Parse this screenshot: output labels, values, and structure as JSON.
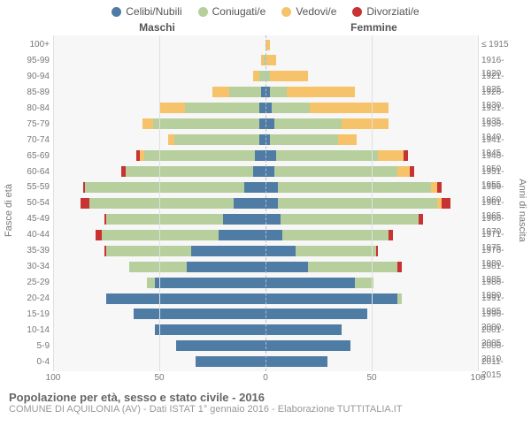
{
  "legend": {
    "items": [
      {
        "label": "Celibi/Nubili",
        "color": "#4f7ca5"
      },
      {
        "label": "Coniugati/e",
        "color": "#b6cf9d"
      },
      {
        "label": "Vedovi/e",
        "color": "#f6c36a"
      },
      {
        "label": "Divorziati/e",
        "color": "#c83232"
      }
    ]
  },
  "headers": {
    "male": "Maschi",
    "female": "Femmine"
  },
  "axis": {
    "left_title": "Fasce di età",
    "right_title": "Anni di nascita",
    "x_ticks": [
      -100,
      -50,
      0,
      50,
      100
    ],
    "half_max": 100
  },
  "colors": {
    "grid": "#e0e0e0",
    "center_dash": "#b8b8d0",
    "plot_bg": "#f7f7f7",
    "axis_text": "#777"
  },
  "footer": {
    "title": "Popolazione per età, sesso e stato civile - 2016",
    "subtitle": "COMUNE DI AQUILONIA (AV) - Dati ISTAT 1° gennaio 2016 - Elaborazione TUTTITALIA.IT"
  },
  "age_groups": [
    "0-4",
    "5-9",
    "10-14",
    "15-19",
    "20-24",
    "25-29",
    "30-34",
    "35-39",
    "40-44",
    "45-49",
    "50-54",
    "55-59",
    "60-64",
    "65-69",
    "70-74",
    "75-79",
    "80-84",
    "85-89",
    "90-94",
    "95-99",
    "100+"
  ],
  "birth_years": [
    "2011-2015",
    "2006-2010",
    "2001-2005",
    "1996-2000",
    "1991-1995",
    "1986-1990",
    "1981-1985",
    "1976-1980",
    "1971-1975",
    "1966-1970",
    "1961-1965",
    "1956-1960",
    "1951-1955",
    "1946-1950",
    "1941-1945",
    "1936-1940",
    "1931-1935",
    "1926-1930",
    "1921-1925",
    "1916-1920",
    "≤ 1915"
  ],
  "male": [
    {
      "cel": 33,
      "con": 0,
      "ved": 0,
      "div": 0
    },
    {
      "cel": 42,
      "con": 0,
      "ved": 0,
      "div": 0
    },
    {
      "cel": 52,
      "con": 0,
      "ved": 0,
      "div": 0
    },
    {
      "cel": 62,
      "con": 0,
      "ved": 0,
      "div": 0
    },
    {
      "cel": 75,
      "con": 0,
      "ved": 0,
      "div": 0
    },
    {
      "cel": 52,
      "con": 4,
      "ved": 0,
      "div": 0
    },
    {
      "cel": 37,
      "con": 27,
      "ved": 0,
      "div": 0
    },
    {
      "cel": 35,
      "con": 40,
      "ved": 0,
      "div": 1
    },
    {
      "cel": 22,
      "con": 55,
      "ved": 0,
      "div": 3
    },
    {
      "cel": 20,
      "con": 55,
      "ved": 0,
      "div": 1
    },
    {
      "cel": 15,
      "con": 68,
      "ved": 0,
      "div": 4
    },
    {
      "cel": 10,
      "con": 75,
      "ved": 0,
      "div": 1
    },
    {
      "cel": 6,
      "con": 60,
      "ved": 0,
      "div": 2
    },
    {
      "cel": 5,
      "con": 52,
      "ved": 2,
      "div": 2
    },
    {
      "cel": 3,
      "con": 40,
      "ved": 3,
      "div": 0
    },
    {
      "cel": 3,
      "con": 50,
      "ved": 5,
      "div": 0
    },
    {
      "cel": 3,
      "con": 35,
      "ved": 12,
      "div": 0
    },
    {
      "cel": 2,
      "con": 15,
      "ved": 8,
      "div": 0
    },
    {
      "cel": 0,
      "con": 3,
      "ved": 3,
      "div": 0
    },
    {
      "cel": 0,
      "con": 1,
      "ved": 1,
      "div": 0
    },
    {
      "cel": 0,
      "con": 0,
      "ved": 0,
      "div": 0
    }
  ],
  "female": [
    {
      "cel": 29,
      "con": 0,
      "ved": 0,
      "div": 0
    },
    {
      "cel": 40,
      "con": 0,
      "ved": 0,
      "div": 0
    },
    {
      "cel": 36,
      "con": 0,
      "ved": 0,
      "div": 0
    },
    {
      "cel": 48,
      "con": 0,
      "ved": 0,
      "div": 0
    },
    {
      "cel": 62,
      "con": 2,
      "ved": 0,
      "div": 0
    },
    {
      "cel": 42,
      "con": 9,
      "ved": 0,
      "div": 0
    },
    {
      "cel": 20,
      "con": 42,
      "ved": 0,
      "div": 2
    },
    {
      "cel": 14,
      "con": 38,
      "ved": 0,
      "div": 1
    },
    {
      "cel": 8,
      "con": 50,
      "ved": 0,
      "div": 2
    },
    {
      "cel": 7,
      "con": 65,
      "ved": 0,
      "div": 2
    },
    {
      "cel": 6,
      "con": 75,
      "ved": 2,
      "div": 4
    },
    {
      "cel": 6,
      "con": 72,
      "ved": 3,
      "div": 2
    },
    {
      "cel": 4,
      "con": 58,
      "ved": 6,
      "div": 2
    },
    {
      "cel": 5,
      "con": 48,
      "ved": 12,
      "div": 2
    },
    {
      "cel": 2,
      "con": 32,
      "ved": 9,
      "div": 0
    },
    {
      "cel": 4,
      "con": 32,
      "ved": 22,
      "div": 0
    },
    {
      "cel": 3,
      "con": 18,
      "ved": 37,
      "div": 0
    },
    {
      "cel": 2,
      "con": 8,
      "ved": 32,
      "div": 0
    },
    {
      "cel": 0,
      "con": 2,
      "ved": 18,
      "div": 0
    },
    {
      "cel": 0,
      "con": 0,
      "ved": 5,
      "div": 0
    },
    {
      "cel": 0,
      "con": 0,
      "ved": 2,
      "div": 0
    }
  ]
}
